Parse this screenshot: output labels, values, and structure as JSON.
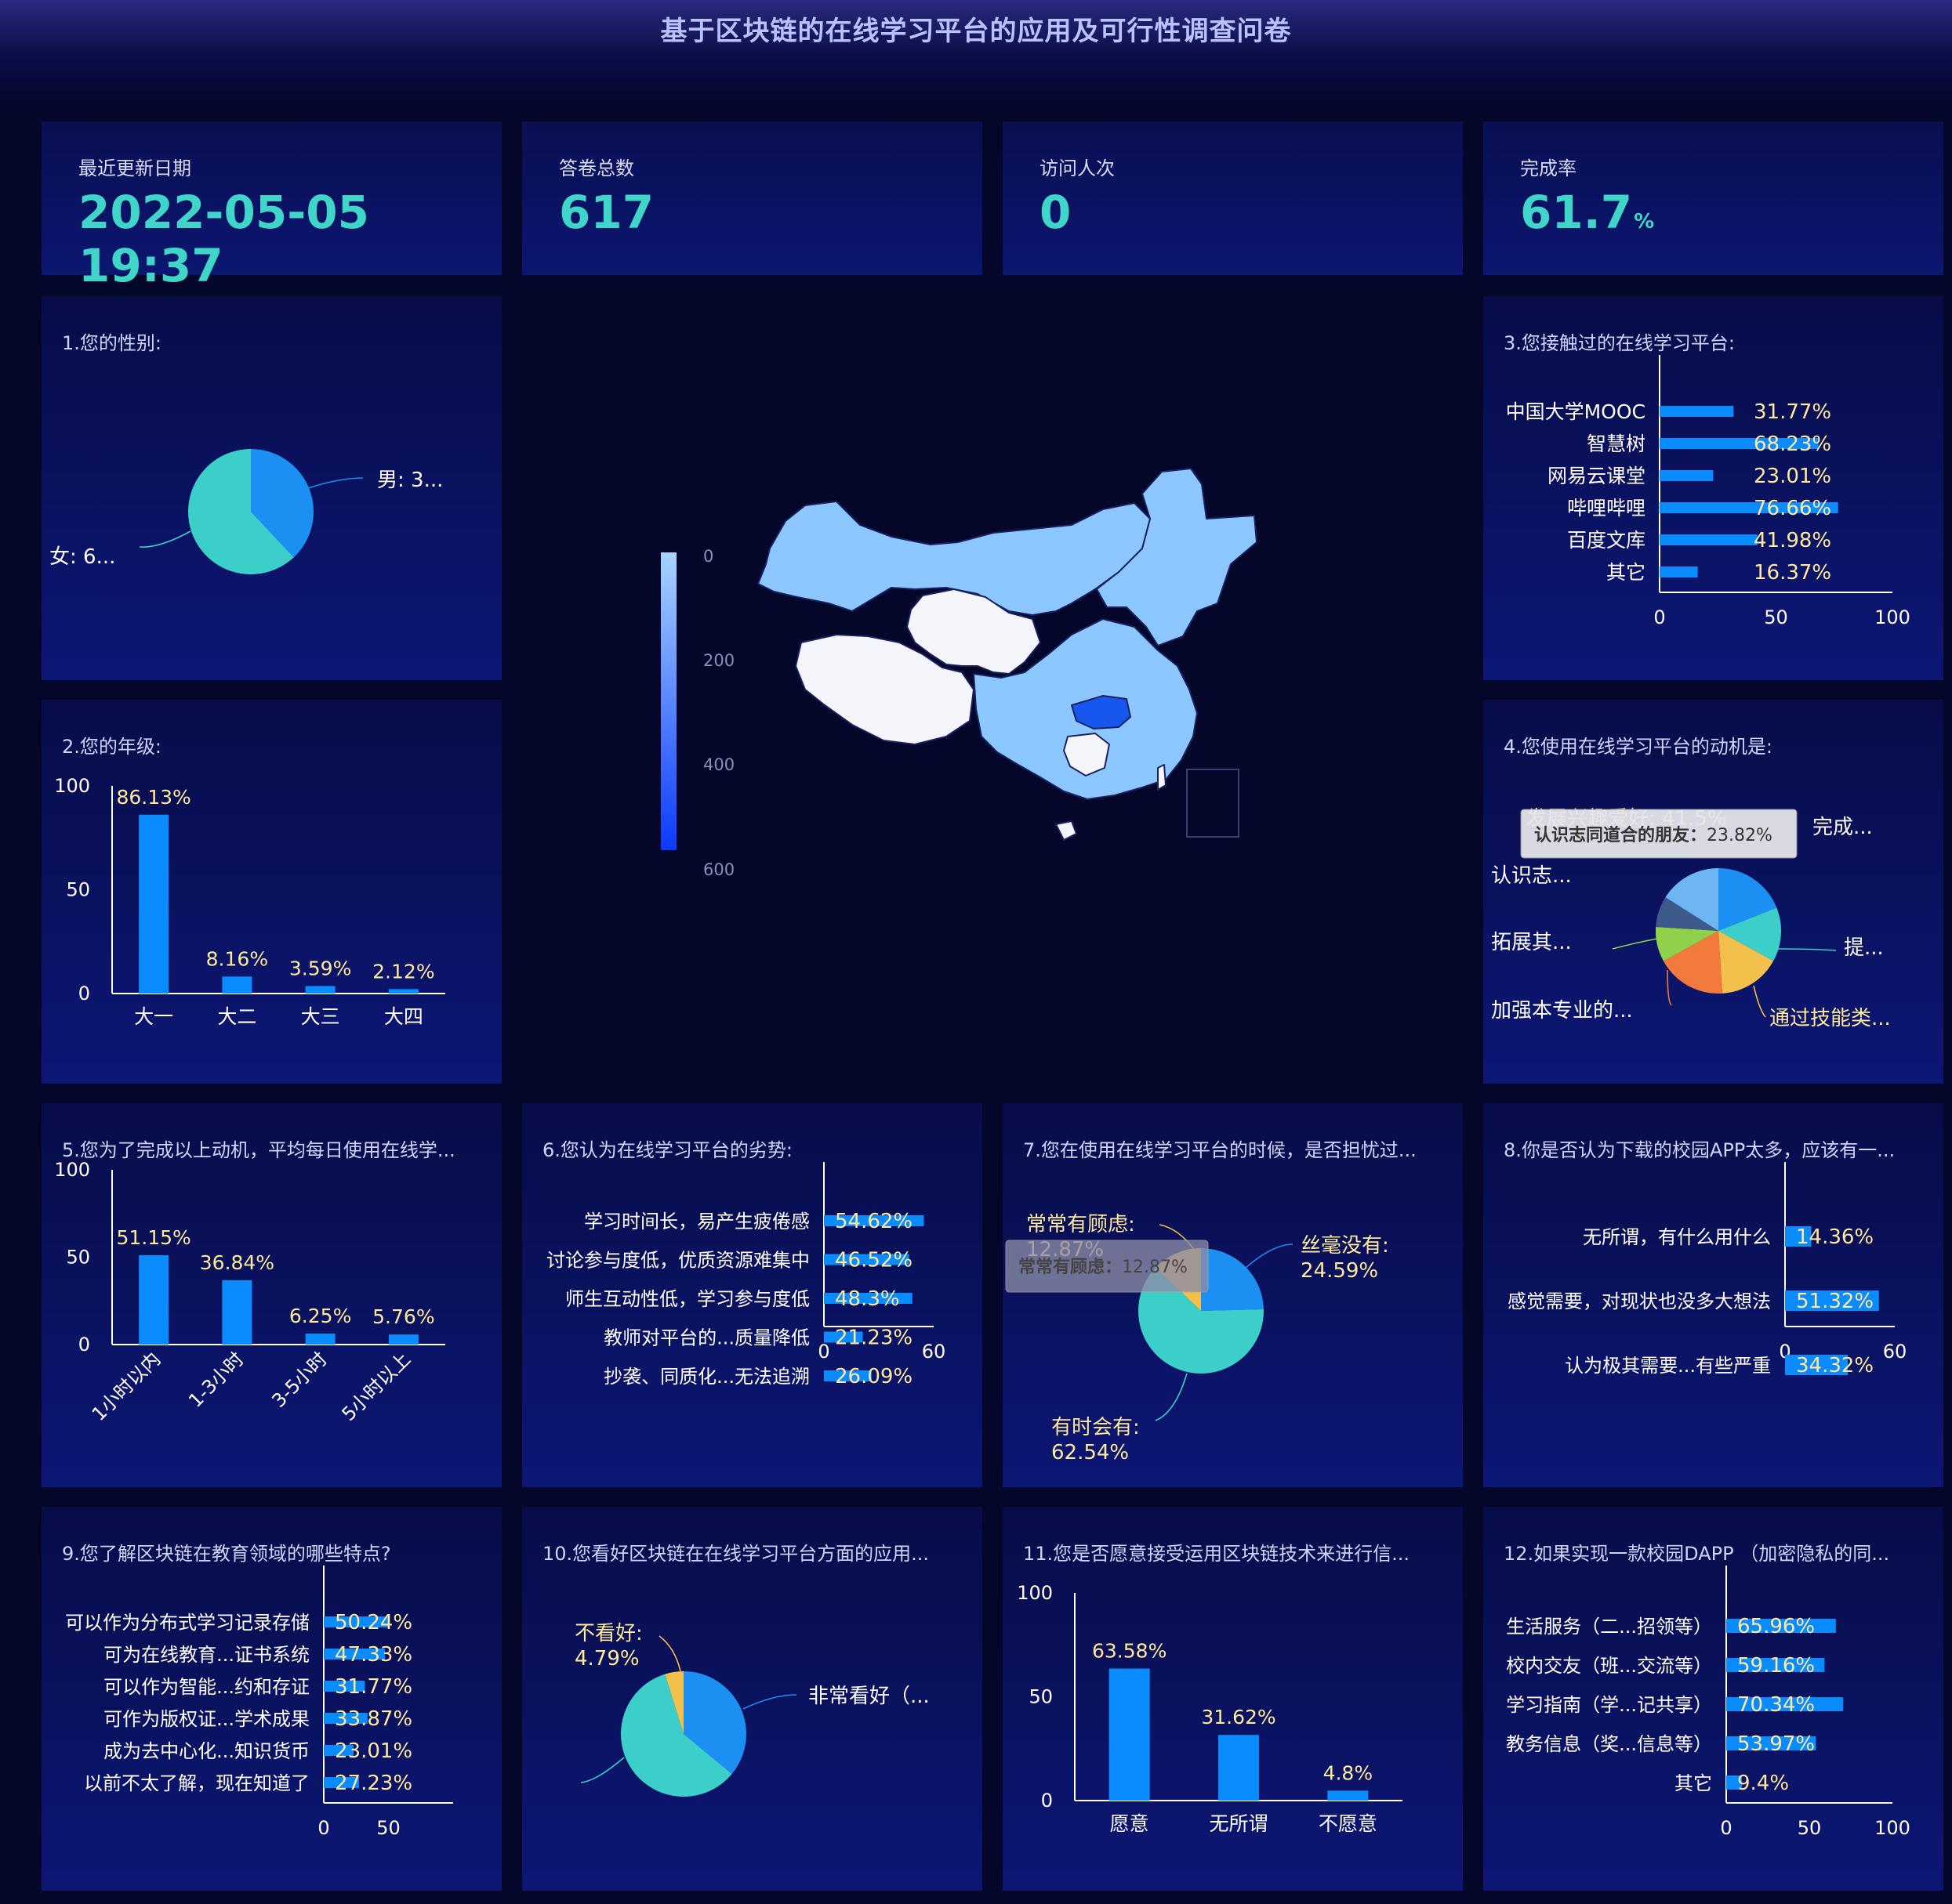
{
  "title": "基于区块链的在线学习平台的应用及可行性调查问卷",
  "kpis": [
    {
      "label": "最近更新日期",
      "value": "2022-05-05 19:37",
      "unit": ""
    },
    {
      "label": "答卷总数",
      "value": "617",
      "unit": ""
    },
    {
      "label": "访问人次",
      "value": "0",
      "unit": ""
    },
    {
      "label": "完成率",
      "value": "61.7",
      "unit": "%"
    }
  ],
  "colors": {
    "bar": "#0a8cff",
    "label": "#ffe99a",
    "axis": "#ffffff",
    "teal": "#3ccfca",
    "blue": "#1b8ff2"
  },
  "map": {
    "visual_map": {
      "min": 0,
      "max": 600,
      "ticks": [
        "0",
        "200",
        "400",
        "600"
      ]
    },
    "tooltip_hidden": true
  },
  "chart_data": [
    {
      "id": "q1",
      "type": "pie",
      "title": "1.您的性别:",
      "slices": [
        {
          "label": "男: 3...",
          "value": 38,
          "color": "#1b8ff2"
        },
        {
          "label": "女: 6...",
          "value": 62,
          "color": "#3ccfca"
        }
      ]
    },
    {
      "id": "q2",
      "type": "bar",
      "title": "2.您的年级:",
      "categories": [
        "大一",
        "大二",
        "大三",
        "大四"
      ],
      "values": [
        86.13,
        8.16,
        3.59,
        2.12
      ],
      "labels": [
        "86.13%",
        "8.16%",
        "3.59%",
        "2.12%"
      ],
      "ylim": [
        0,
        100
      ],
      "yticks": [
        "0",
        "50",
        "100"
      ]
    },
    {
      "id": "q3",
      "type": "hbar",
      "title": "3.您接触过的在线学习平台:",
      "categories": [
        "中国大学MOOC",
        "智慧树",
        "网易云课堂",
        "哔哩哔哩",
        "百度文库",
        "其它"
      ],
      "values": [
        31.77,
        68.23,
        23.01,
        76.66,
        41.98,
        16.37
      ],
      "labels": [
        "31.77%",
        "68.23%",
        "23.01%",
        "76.66%",
        "41.98%",
        "16.37%"
      ],
      "xlim": [
        0,
        100
      ],
      "xticks": [
        "0",
        "50",
        "100"
      ]
    },
    {
      "id": "q4",
      "type": "pie",
      "title": "4.您使用在线学习平台的动机是:",
      "slices": [
        {
          "label": "完成...",
          "value": 19,
          "color": "#1b8ff2"
        },
        {
          "label": "提...",
          "value": 14,
          "color": "#3ccfca"
        },
        {
          "label": "通过技能类...",
          "value": 16,
          "color": "#f2c04b"
        },
        {
          "label": "加强本专业的...",
          "value": 18,
          "color": "#f27a3c"
        },
        {
          "label": "拓展其...",
          "value": 9,
          "color": "#8fd14a"
        },
        {
          "label": "认识志...",
          "value": 8,
          "color": "#3d5a8a"
        },
        {
          "label": "发展兴趣爱好",
          "value": 16,
          "color": "#6db6f2"
        }
      ],
      "tooltip": {
        "name": "认识志同道合的朋友",
        "value": "23.82%"
      },
      "overlap_text": "发展兴趣爱好: 41.5%"
    },
    {
      "id": "q5",
      "type": "bar",
      "title": "5.您为了完成以上动机，平均每日使用在线学...",
      "categories": [
        "1小时以内",
        "1-3小时",
        "3-5小时",
        "5小时以上"
      ],
      "values": [
        51.15,
        36.84,
        6.25,
        5.76
      ],
      "labels": [
        "51.15%",
        "36.84%",
        "6.25%",
        "5.76%"
      ],
      "ylim": [
        0,
        100
      ],
      "yticks": [
        "0",
        "50",
        "100"
      ]
    },
    {
      "id": "q6",
      "type": "hbar",
      "title": "6.您认为在线学习平台的劣势:",
      "categories": [
        "学习时间长，易产生疲倦感",
        "讨论参与度低，优质资源难集中",
        "师生互动性低，学习参与度低",
        "教师对平台的...质量降低",
        "抄袭、同质化...无法追溯"
      ],
      "values": [
        54.62,
        46.52,
        48.3,
        21.23,
        26.09
      ],
      "labels": [
        "54.62%",
        "46.52%",
        "48.3%",
        "21.23%",
        "26.09%"
      ],
      "xlim": [
        0,
        60
      ],
      "xticks": [
        "0",
        "60"
      ]
    },
    {
      "id": "q7",
      "type": "pie",
      "title": "7.您在使用在线学习平台的时候，是否担忧过...",
      "slices": [
        {
          "label": "丝毫没有:",
          "pct": "24.59%",
          "value": 24.59,
          "color": "#1b8ff2"
        },
        {
          "label": "有时会有:",
          "pct": "62.54%",
          "value": 62.54,
          "color": "#3ccfca"
        },
        {
          "label": "常常有顾虑:",
          "pct": "12.87%",
          "value": 12.87,
          "color": "#f2c04b"
        }
      ],
      "tooltip": {
        "name": "常常有顾虑",
        "value": "12.87%"
      }
    },
    {
      "id": "q8",
      "type": "hbar",
      "title": "8.你是否认为下载的校园APP太多，应该有一...",
      "categories": [
        "无所谓，有什么用什么",
        "感觉需要，对现状也没多大想法",
        "认为极其需要...有些严重"
      ],
      "values": [
        14.36,
        51.32,
        34.32
      ],
      "labels": [
        "14.36%",
        "51.32%",
        "34.32%"
      ],
      "xlim": [
        0,
        60
      ],
      "xticks": [
        "0",
        "60"
      ]
    },
    {
      "id": "q9",
      "type": "hbar",
      "title": "9.您了解区块链在教育领域的哪些特点?",
      "categories": [
        "可以作为分布式学习记录存储",
        "可为在线教育...证书系统",
        "可以作为智能...约和存证",
        "可作为版权证...学术成果",
        "成为去中心化...知识货币",
        "以前不太了解，现在知道了"
      ],
      "values": [
        50.24,
        47.33,
        31.77,
        33.87,
        23.01,
        27.23
      ],
      "labels": [
        "50.24%",
        "47.33%",
        "31.77%",
        "33.87%",
        "23.01%",
        "27.23%"
      ],
      "xlim": [
        0,
        100
      ],
      "xticks": [
        "0",
        "50"
      ]
    },
    {
      "id": "q10",
      "type": "pie",
      "title": "10.您看好区块链在在线学习平台方面的应用...",
      "slices": [
        {
          "label": "非常看好（...",
          "value": 36,
          "color": "#1b8ff2"
        },
        {
          "label": "",
          "value": 59.21,
          "color": "#3ccfca"
        },
        {
          "label": "不看好:",
          "pct": "4.79%",
          "value": 4.79,
          "color": "#f2c04b"
        }
      ]
    },
    {
      "id": "q11",
      "type": "bar",
      "title": "11.您是否愿意接受运用区块链技术来进行信...",
      "categories": [
        "愿意",
        "无所谓",
        "不愿意"
      ],
      "values": [
        63.58,
        31.62,
        4.8
      ],
      "labels": [
        "63.58%",
        "31.62%",
        "4.8%"
      ],
      "ylim": [
        0,
        100
      ],
      "yticks": [
        "0",
        "50",
        "100"
      ]
    },
    {
      "id": "q12",
      "type": "hbar",
      "title": "12.如果实现一款校园DAPP （加密隐私的同...",
      "categories": [
        "生活服务（二...招领等）",
        "校内交友（班...交流等）",
        "学习指南（学...记共享）",
        "教务信息（奖...信息等）",
        "其它"
      ],
      "values": [
        65.96,
        59.16,
        70.34,
        53.97,
        9.4
      ],
      "labels": [
        "65.96%",
        "59.16%",
        "70.34%",
        "53.97%",
        "9.4%"
      ],
      "xlim": [
        0,
        100
      ],
      "xticks": [
        "0",
        "50",
        "100"
      ]
    }
  ]
}
